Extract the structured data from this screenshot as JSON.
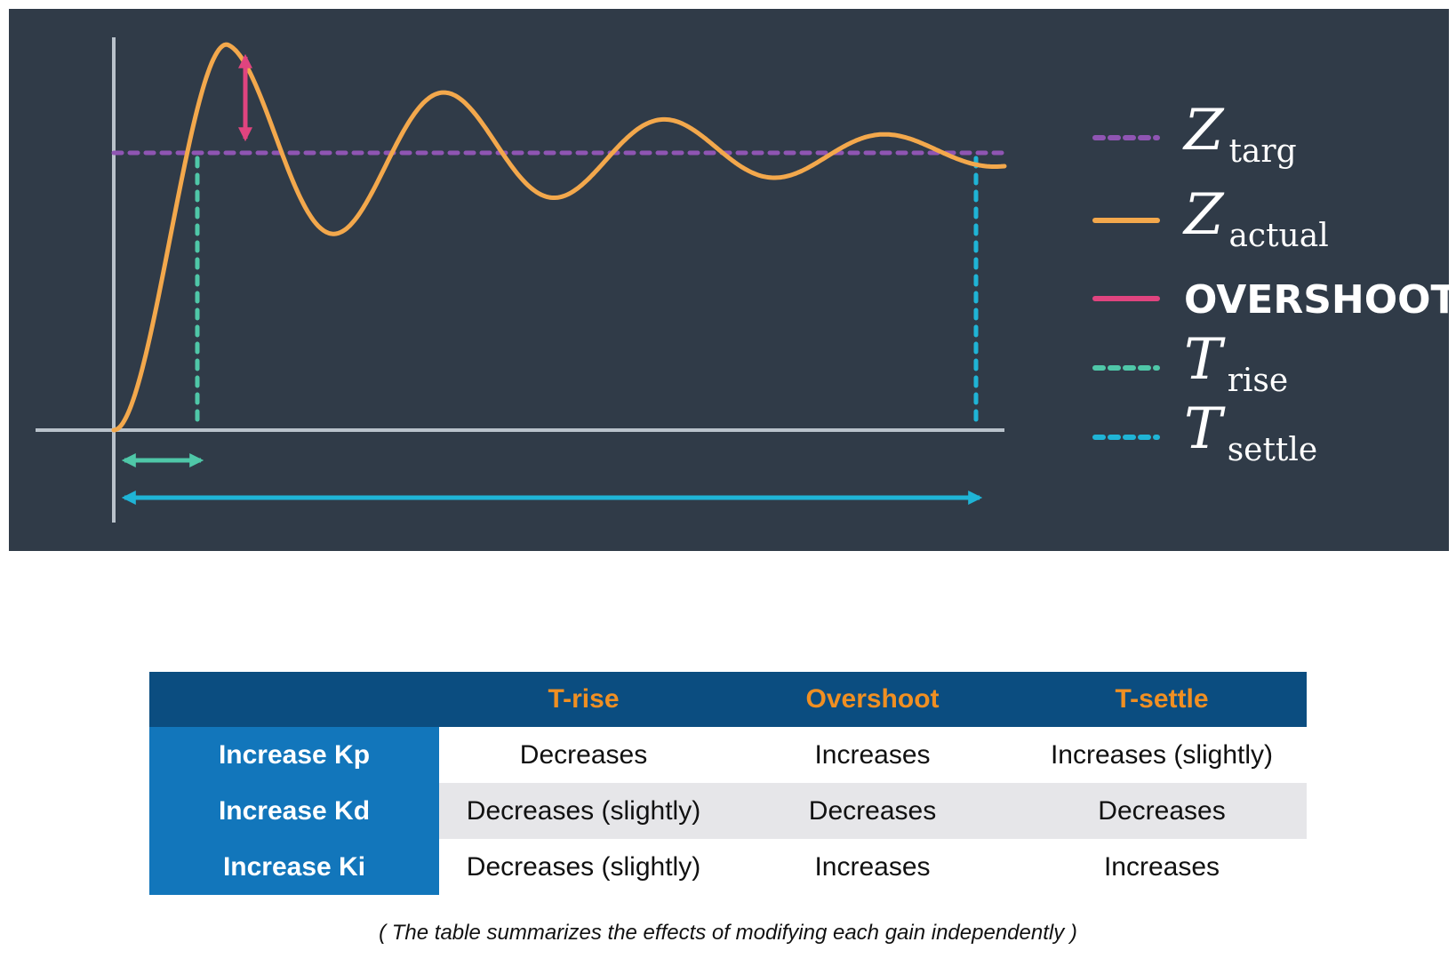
{
  "diagram": {
    "colors": {
      "background": "#303b48",
      "axes": "#b9c2cb",
      "target": "#8f55b3",
      "actual": "#f3a84c",
      "overshoot": "#e0447f",
      "rise": "#4fc7a8",
      "settle": "#1fb4d6"
    },
    "legend": [
      {
        "key": "target",
        "symbol": "Z",
        "subscript": "targ",
        "style": "dotted"
      },
      {
        "key": "actual",
        "symbol": "Z",
        "subscript": "actual",
        "style": "solid"
      },
      {
        "key": "overshoot",
        "label": "OVERSHOOT",
        "style": "solid"
      },
      {
        "key": "rise",
        "symbol": "T",
        "subscript": "rise",
        "style": "dotted"
      },
      {
        "key": "settle",
        "symbol": "T",
        "subscript": "settle",
        "style": "dotted"
      }
    ]
  },
  "table": {
    "header": [
      "",
      "T-rise",
      "Overshoot",
      "T-settle"
    ],
    "rows": [
      {
        "label": "Increase Kp",
        "cells": [
          "Decreases",
          "Increases",
          "Increases (slightly)"
        ]
      },
      {
        "label": "Increase Kd",
        "cells": [
          "Decreases (slightly)",
          "Decreases",
          "Decreases"
        ]
      },
      {
        "label": "Increase Ki",
        "cells": [
          "Decreases (slightly)",
          "Increases",
          "Increases"
        ]
      }
    ],
    "colors": {
      "header_bg": "#0b4d80",
      "header_text": "#f08f22",
      "rowlabel_bg": "#1276bb",
      "alt_row_bg": "#e6e6e9"
    }
  },
  "caption": "( The table summarizes the effects of modifying each gain independently )"
}
